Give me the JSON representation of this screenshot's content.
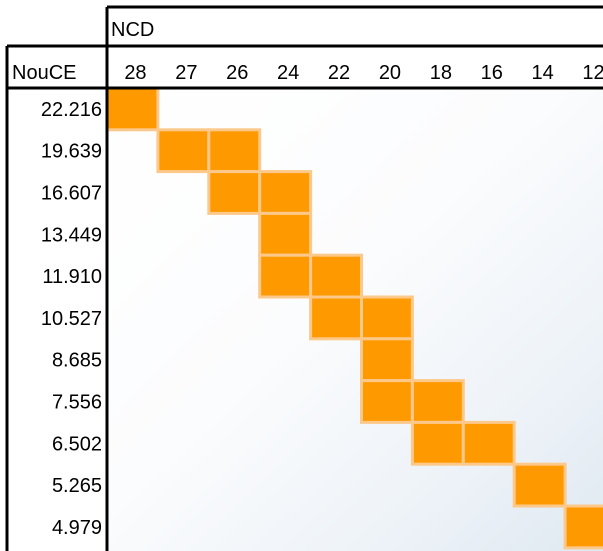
{
  "chart_data": {
    "type": "heatmap",
    "col_header": "NCD",
    "row_header": "NouCE",
    "columns": [
      "28",
      "27",
      "26",
      "24",
      "22",
      "20",
      "18",
      "16",
      "14",
      "12"
    ],
    "rows": [
      "22.216",
      "19.639",
      "16.607",
      "13.449",
      "11.910",
      "10.527",
      "8.685",
      "7.556",
      "6.502",
      "5.265",
      "4.979"
    ],
    "cells": [
      {
        "row": "22.216",
        "col": "28"
      },
      {
        "row": "19.639",
        "col": "27"
      },
      {
        "row": "19.639",
        "col": "26"
      },
      {
        "row": "16.607",
        "col": "26"
      },
      {
        "row": "16.607",
        "col": "24"
      },
      {
        "row": "13.449",
        "col": "24"
      },
      {
        "row": "11.910",
        "col": "24"
      },
      {
        "row": "11.910",
        "col": "22"
      },
      {
        "row": "10.527",
        "col": "22"
      },
      {
        "row": "10.527",
        "col": "20"
      },
      {
        "row": "8.685",
        "col": "20"
      },
      {
        "row": "7.556",
        "col": "20"
      },
      {
        "row": "7.556",
        "col": "18"
      },
      {
        "row": "6.502",
        "col": "18"
      },
      {
        "row": "6.502",
        "col": "16"
      },
      {
        "row": "5.265",
        "col": "14"
      },
      {
        "row": "4.979",
        "col": "12"
      }
    ],
    "fill_color": "#ff9900",
    "cell_border_color": "#fcc98a"
  }
}
